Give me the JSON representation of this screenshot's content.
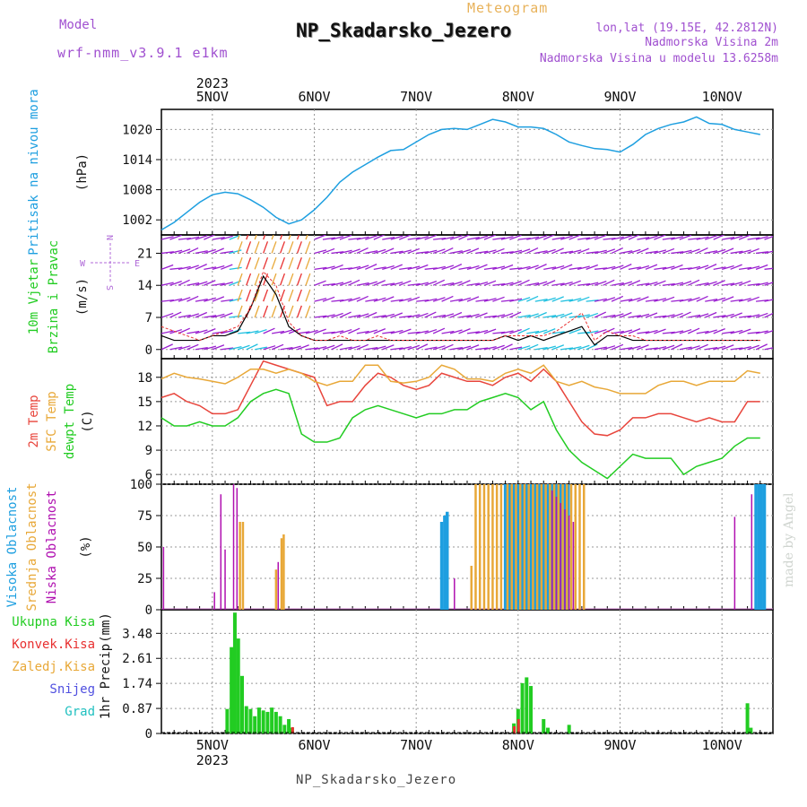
{
  "header": {
    "meteogram": "Meteogram",
    "station": "NP_Skadarsko_Jezero",
    "model_label": "Model",
    "model_name": "wrf-nmm_v3.9.1  e1km",
    "coords": "lon,lat (19.15E, 42.2812N)",
    "elevation": "Nadmorska Visina 2m",
    "elevation_model": "Nadmorska Visina u modelu 13.6258m"
  },
  "footer": {
    "station": "NP_Skadarsko_Jezero",
    "credit": "made by Angel"
  },
  "colors": {
    "pressure": "#1e9fe0",
    "temp": "#e8453c",
    "sfc_temp": "#e8a838",
    "dewpt": "#22cc22",
    "wind_slow": "#9a1fd0",
    "wind_fast": "#20c0e0",
    "gust": "#e83030",
    "high_cloud": "#1e9fe0",
    "mid_cloud": "#e8a838",
    "low_cloud": "#b010b0",
    "total_precip": "#22cc22",
    "conv_precip": "#e83030"
  },
  "chart_data": [
    {
      "type": "line",
      "ylabel": [
        "Pritisak na nivou mora",
        "(hPa)"
      ],
      "yticks": [
        1002,
        1008,
        1014,
        1020
      ],
      "ylim": [
        999,
        1024
      ],
      "x_day_labels": [
        "5NOV",
        "6NOV",
        "7NOV",
        "8NOV",
        "9NOV",
        "10NOV"
      ],
      "year": "2023",
      "x_hours": [
        0,
        3,
        6,
        9,
        12,
        15,
        18,
        21,
        24,
        27,
        30,
        33,
        36,
        39,
        42,
        45,
        48,
        51,
        54,
        57,
        60,
        63,
        66,
        69,
        72,
        75,
        78,
        81,
        84,
        87,
        90,
        93,
        96,
        99,
        102,
        105,
        108,
        111,
        114,
        117,
        120,
        123,
        126,
        129,
        132,
        135,
        138,
        141
      ],
      "series": [
        {
          "values": [
            1000,
            1001.5,
            1003.5,
            1005.5,
            1007,
            1007.5,
            1007.2,
            1006,
            1004.5,
            1002.5,
            1001.2,
            1002,
            1004,
            1006.5,
            1009.5,
            1011.5,
            1013,
            1014.5,
            1015.8,
            1016,
            1017.5,
            1019,
            1020,
            1020.2,
            1020,
            1021,
            1022,
            1021.5,
            1020.5,
            1020.5,
            1020.2,
            1019,
            1017.5,
            1016.8,
            1016.2,
            1016,
            1015.5,
            1017,
            1019,
            1020.2,
            1021,
            1021.5,
            1022.5,
            1021.2,
            1021,
            1020,
            1019.5,
            1019
          ]
        }
      ]
    },
    {
      "type": "line",
      "ylabel": [
        "10m Vjetar",
        "Brzina i Pravac",
        "(m/s)"
      ],
      "compass": [
        "N",
        "E",
        "S",
        "W"
      ],
      "yticks": [
        0,
        7,
        14,
        21
      ],
      "ylim": [
        -2,
        25
      ],
      "x_hours": [
        0,
        3,
        6,
        9,
        12,
        15,
        18,
        21,
        24,
        27,
        30,
        33,
        36,
        39,
        42,
        45,
        48,
        51,
        54,
        57,
        60,
        63,
        66,
        69,
        72,
        75,
        78,
        81,
        84,
        87,
        90,
        93,
        96,
        99,
        102,
        105,
        108,
        111,
        114,
        117,
        120,
        123,
        126,
        129,
        132,
        135,
        138,
        141
      ],
      "series": [
        {
          "name": "wind",
          "values": [
            3,
            2,
            2,
            2,
            3,
            3,
            4,
            9,
            16,
            12,
            5,
            3,
            2,
            2,
            2,
            2,
            2,
            2,
            2,
            2,
            2,
            2,
            2,
            2,
            2,
            2,
            2,
            3,
            2,
            3,
            2,
            3,
            4,
            5,
            1,
            3,
            3,
            2,
            2,
            2,
            2,
            2,
            2,
            2,
            2,
            2,
            2,
            2
          ]
        },
        {
          "name": "gust",
          "values": [
            5,
            4,
            3,
            2,
            3,
            4,
            5,
            9,
            17,
            14,
            6,
            3,
            2,
            2,
            3,
            2,
            2,
            3,
            2,
            2,
            2,
            2,
            2,
            2,
            2,
            2,
            2,
            3,
            3,
            3,
            3,
            4,
            6,
            8,
            2,
            4,
            3,
            3,
            2,
            2,
            2,
            2,
            2,
            2,
            2,
            2,
            2,
            2
          ]
        }
      ]
    },
    {
      "type": "line",
      "ylabel": [
        "2m Temp",
        "SFC Temp",
        "dewpt Temp",
        "(C)"
      ],
      "yticks": [
        6,
        9,
        12,
        15,
        18
      ],
      "ylim": [
        4.8,
        20.3
      ],
      "x_hours": [
        0,
        3,
        6,
        9,
        12,
        15,
        18,
        21,
        24,
        27,
        30,
        33,
        36,
        39,
        42,
        45,
        48,
        51,
        54,
        57,
        60,
        63,
        66,
        69,
        72,
        75,
        78,
        81,
        84,
        87,
        90,
        93,
        96,
        99,
        102,
        105,
        108,
        111,
        114,
        117,
        120,
        123,
        126,
        129,
        132,
        135,
        138,
        141
      ],
      "series": [
        {
          "name": "2m Temp",
          "values": [
            15.5,
            16,
            15,
            14.5,
            13.5,
            13.5,
            14,
            17,
            20,
            19.5,
            19,
            18.5,
            18,
            14.5,
            15,
            15,
            17,
            18.5,
            18,
            17,
            16.5,
            17,
            18.5,
            18,
            17.5,
            17.5,
            17,
            18,
            18.5,
            17.5,
            19,
            17.5,
            15,
            12.5,
            11,
            10.8,
            11.5,
            13,
            13,
            13.5,
            13.5,
            13,
            12.5,
            13,
            12.5,
            12.5,
            15,
            15
          ]
        },
        {
          "name": "SFC Temp",
          "values": [
            17.8,
            18.5,
            18,
            17.8,
            17.5,
            17.2,
            18,
            19,
            19,
            18.5,
            19,
            18.5,
            17.5,
            17,
            17.5,
            17.5,
            19.5,
            19.5,
            17.5,
            17.3,
            17.5,
            18,
            19.5,
            19,
            17.8,
            17.8,
            17.5,
            18.5,
            19,
            18.5,
            19.5,
            17.5,
            17,
            17.5,
            16.8,
            16.5,
            16,
            16,
            16,
            17,
            17.5,
            17.5,
            17,
            17.5,
            17.5,
            17.5,
            18.8,
            18.5
          ]
        },
        {
          "name": "dewpt Temp",
          "values": [
            13,
            12,
            12,
            12.5,
            12,
            12,
            13,
            15,
            16,
            16.5,
            16,
            11,
            10,
            10,
            10.5,
            13,
            14,
            14.5,
            14,
            13.5,
            13,
            13.5,
            13.5,
            14,
            14,
            15,
            15.5,
            16,
            15.5,
            14,
            15,
            11.5,
            9,
            7.5,
            6.5,
            5.5,
            7,
            8.5,
            8,
            8,
            8,
            6,
            7,
            7.5,
            8,
            9.5,
            10.5,
            10.5
          ]
        }
      ]
    },
    {
      "type": "bar",
      "ylabel": [
        "Visoka Oblacnost",
        "Srednja Oblacnost",
        "Niska Oblacnost",
        "(%)"
      ],
      "yticks": [
        0,
        25,
        50,
        75,
        100
      ],
      "ylim": [
        0,
        100
      ],
      "series": [
        {
          "name": "Visoka Oblacnost",
          "bars": [
            [
              66,
              70
            ],
            [
              66.7,
              75
            ],
            [
              67.3,
              78
            ],
            [
              81,
              100
            ],
            [
              82,
              100
            ],
            [
              83,
              100
            ],
            [
              84,
              100
            ],
            [
              85,
              100
            ],
            [
              86,
              100
            ],
            [
              87,
              100
            ],
            [
              88,
              100
            ],
            [
              89,
              100
            ],
            [
              90,
              100
            ],
            [
              91,
              100
            ],
            [
              92,
              100
            ],
            [
              93,
              100
            ],
            [
              94,
              100
            ],
            [
              95,
              100
            ],
            [
              95.8,
              100
            ],
            [
              140,
              100
            ],
            [
              140.7,
              100
            ],
            [
              141.3,
              100
            ],
            [
              142,
              100
            ]
          ]
        },
        {
          "name": "Srednja Oblacnost",
          "bars": [
            [
              18.5,
              70
            ],
            [
              19.2,
              70
            ],
            [
              27,
              32
            ],
            [
              28.3,
              57
            ],
            [
              28.8,
              60
            ],
            [
              73,
              35
            ],
            [
              74,
              100
            ],
            [
              75,
              100
            ],
            [
              76,
              100
            ],
            [
              77,
              100
            ],
            [
              78,
              100
            ],
            [
              79,
              100
            ],
            [
              80,
              100
            ],
            [
              81.5,
              100
            ],
            [
              82.5,
              100
            ],
            [
              83.5,
              100
            ],
            [
              84.5,
              100
            ],
            [
              85.5,
              100
            ],
            [
              86.5,
              100
            ],
            [
              87.5,
              100
            ],
            [
              88.5,
              100
            ],
            [
              89.5,
              100
            ],
            [
              90.5,
              100
            ],
            [
              91.5,
              100
            ],
            [
              92.5,
              100
            ],
            [
              93.5,
              100
            ],
            [
              94.5,
              100
            ],
            [
              95.5,
              100
            ],
            [
              96.5,
              100
            ],
            [
              97.5,
              100
            ],
            [
              98.5,
              100
            ],
            [
              99.5,
              100
            ]
          ]
        },
        {
          "name": "Niska Oblacnost",
          "bars": [
            [
              0.5,
              50
            ],
            [
              12.5,
              14
            ],
            [
              14,
              92
            ],
            [
              15,
              48
            ],
            [
              17,
              100
            ],
            [
              17.8,
              97
            ],
            [
              27.5,
              38
            ],
            [
              69,
              25
            ],
            [
              92,
              95
            ],
            [
              93,
              90
            ],
            [
              94,
              85
            ],
            [
              95,
              80
            ],
            [
              96,
              75
            ],
            [
              97,
              70
            ],
            [
              135,
              74
            ],
            [
              139,
              92
            ]
          ]
        }
      ]
    },
    {
      "type": "bar",
      "ylabel": [
        "1hr Precip",
        "(mm)"
      ],
      "legend": [
        "Ukupna Kisa",
        "Konvek.Kisa",
        "Zaledj.Kisa",
        "Snijeg",
        "Grad"
      ],
      "yticks": [
        0,
        0.87,
        1.74,
        2.61,
        3.48
      ],
      "ylim": [
        0,
        4.3
      ],
      "series": [
        {
          "name": "Ukupna Kisa",
          "bars": [
            [
              15.5,
              0.85
            ],
            [
              16.5,
              3
            ],
            [
              17.3,
              4.2
            ],
            [
              18.1,
              3.3
            ],
            [
              19,
              2
            ],
            [
              20,
              0.95
            ],
            [
              21,
              0.85
            ],
            [
              22,
              0.6
            ],
            [
              23,
              0.9
            ],
            [
              24,
              0.8
            ],
            [
              25,
              0.75
            ],
            [
              26,
              0.9
            ],
            [
              27,
              0.75
            ],
            [
              28,
              0.6
            ],
            [
              29,
              0.3
            ],
            [
              30,
              0.5
            ],
            [
              30.8,
              0.2
            ],
            [
              83,
              0.35
            ],
            [
              84,
              0.85
            ],
            [
              85,
              1.75
            ],
            [
              86,
              1.95
            ],
            [
              87,
              1.65
            ],
            [
              90,
              0.5
            ],
            [
              91,
              0.2
            ],
            [
              96,
              0.3
            ],
            [
              138,
              1.05
            ],
            [
              138.8,
              0.2
            ]
          ]
        },
        {
          "name": "Konvek.Kisa",
          "bars": [
            [
              31,
              0.22
            ],
            [
              83.2,
              0.25
            ],
            [
              84.2,
              0.5
            ]
          ]
        }
      ]
    }
  ]
}
